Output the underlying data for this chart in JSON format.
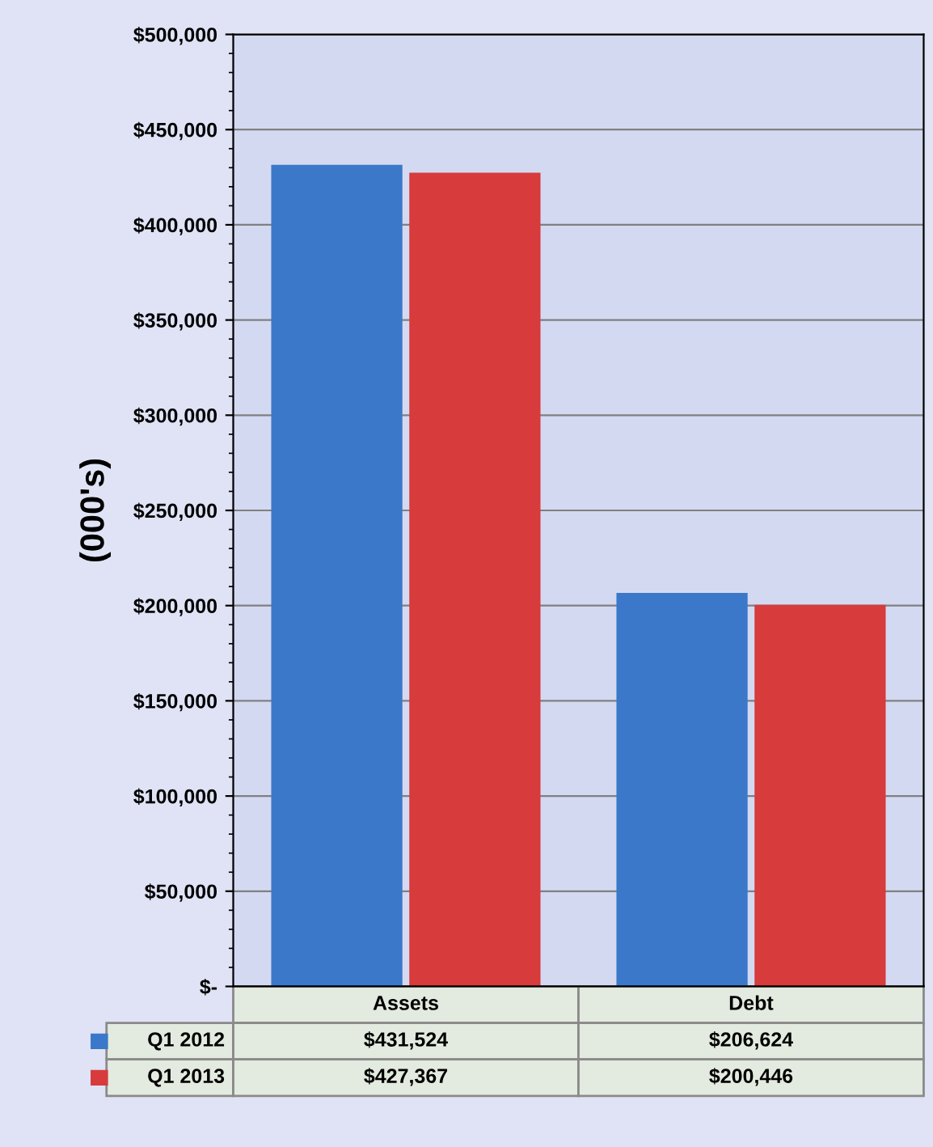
{
  "chart_data": {
    "type": "bar",
    "ylabel": "(000's)",
    "categories": [
      "Assets",
      "Debt"
    ],
    "series": [
      {
        "name": "Q1 2012",
        "color": "#3b78c9",
        "values": [
          431524,
          206624
        ],
        "value_labels": [
          "$431,524",
          "$206,624"
        ]
      },
      {
        "name": "Q1 2013",
        "color": "#d73b3b",
        "values": [
          427367,
          200446
        ],
        "value_labels": [
          "$427,367",
          "$200,446"
        ]
      }
    ],
    "ylim": [
      0,
      500000
    ],
    "yticks": [
      {
        "value": 0,
        "label": "$-"
      },
      {
        "value": 50000,
        "label": "$50,000"
      },
      {
        "value": 100000,
        "label": "$100,000"
      },
      {
        "value": 150000,
        "label": "$150,000"
      },
      {
        "value": 200000,
        "label": "$200,000"
      },
      {
        "value": 250000,
        "label": "$250,000"
      },
      {
        "value": 300000,
        "label": "$300,000"
      },
      {
        "value": 350000,
        "label": "$350,000"
      },
      {
        "value": 400000,
        "label": "$400,000"
      },
      {
        "value": 450000,
        "label": "$450,000"
      },
      {
        "value": 500000,
        "label": "$500,000"
      }
    ],
    "grid": "y",
    "legend": "bottom"
  }
}
